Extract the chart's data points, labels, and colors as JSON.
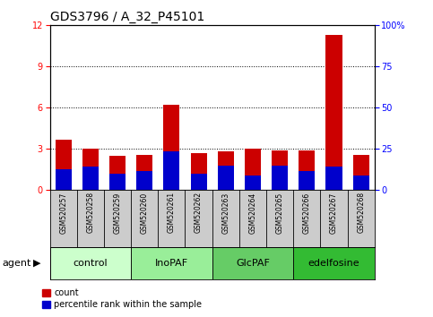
{
  "title": "GDS3796 / A_32_P45101",
  "samples": [
    "GSM520257",
    "GSM520258",
    "GSM520259",
    "GSM520260",
    "GSM520261",
    "GSM520262",
    "GSM520263",
    "GSM520264",
    "GSM520265",
    "GSM520266",
    "GSM520267",
    "GSM520268"
  ],
  "count_values": [
    3.7,
    3.0,
    2.5,
    2.6,
    6.2,
    2.7,
    2.8,
    3.0,
    2.9,
    2.9,
    11.3,
    2.6
  ],
  "percentile_values_left_scale": [
    1.5,
    1.7,
    1.2,
    1.4,
    2.8,
    1.2,
    1.8,
    1.1,
    1.8,
    1.4,
    1.7,
    1.1
  ],
  "groups": [
    {
      "label": "control",
      "start": 0,
      "end": 3,
      "color": "#ccffcc"
    },
    {
      "label": "InoPAF",
      "start": 3,
      "end": 6,
      "color": "#99ee99"
    },
    {
      "label": "GlcPAF",
      "start": 6,
      "end": 9,
      "color": "#66cc66"
    },
    {
      "label": "edelfosine",
      "start": 9,
      "end": 12,
      "color": "#33bb33"
    }
  ],
  "ylim_left": [
    0,
    12
  ],
  "ylim_right": [
    0,
    100
  ],
  "yticks_left": [
    0,
    3,
    6,
    9,
    12
  ],
  "yticks_right": [
    0,
    25,
    50,
    75,
    100
  ],
  "ytick_labels_right": [
    "0",
    "25",
    "50",
    "75",
    "100%"
  ],
  "bar_color_red": "#cc0000",
  "bar_color_blue": "#0000cc",
  "bar_width": 0.6,
  "bg_color": "#ffffff",
  "tick_area_color": "#cccccc",
  "agent_label": "agent",
  "legend_count": "count",
  "legend_pct": "percentile rank within the sample",
  "title_fontsize": 10,
  "tick_fontsize": 7,
  "label_fontsize": 8,
  "group_label_fontsize": 8,
  "sample_fontsize": 5.5
}
